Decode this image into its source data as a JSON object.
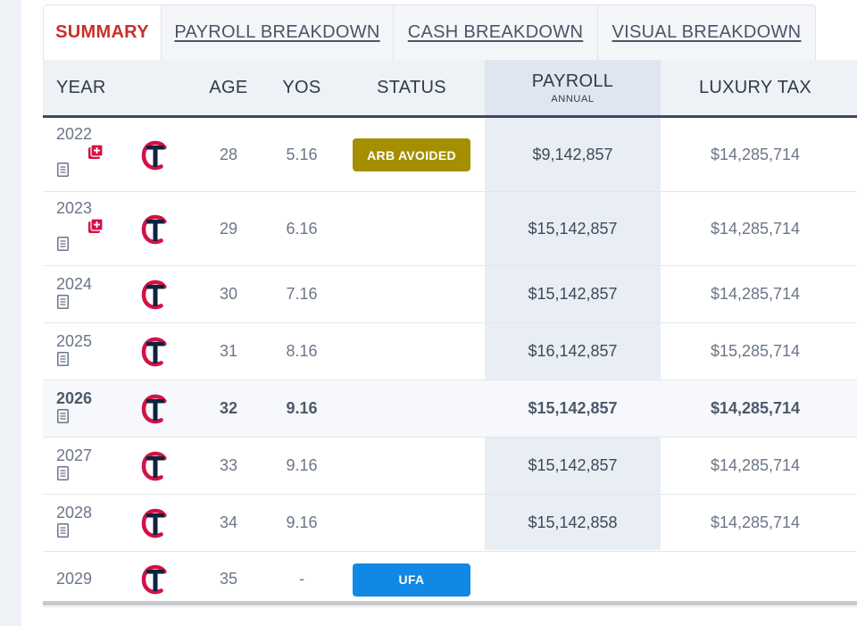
{
  "tabs": [
    {
      "label": "SUMMARY",
      "active": true
    },
    {
      "label": "PAYROLL BREAKDOWN",
      "active": false
    },
    {
      "label": "CASH BREAKDOWN",
      "active": false
    },
    {
      "label": "VISUAL BREAKDOWN",
      "active": false
    }
  ],
  "table": {
    "headers": {
      "year": "YEAR",
      "age": "AGE",
      "yos": "YOS",
      "status": "STATUS",
      "payroll": "PAYROLL",
      "payroll_sub": "ANNUAL",
      "luxury_tax": "LUXURY TAX"
    },
    "rows": [
      {
        "year": "2022",
        "age": "28",
        "yos": "5.16",
        "status": "ARB AVOIDED",
        "payroll": "$9,142,857",
        "luxury_tax": "$14,285,714"
      },
      {
        "year": "2023",
        "age": "29",
        "yos": "6.16",
        "status": "",
        "payroll": "$15,142,857",
        "luxury_tax": "$14,285,714"
      },
      {
        "year": "2024",
        "age": "30",
        "yos": "7.16",
        "status": "",
        "payroll": "$15,142,857",
        "luxury_tax": "$14,285,714"
      },
      {
        "year": "2025",
        "age": "31",
        "yos": "8.16",
        "status": "",
        "payroll": "$16,142,857",
        "luxury_tax": "$15,285,714"
      },
      {
        "year": "2026",
        "age": "32",
        "yos": "9.16",
        "status": "",
        "payroll": "$15,142,857",
        "luxury_tax": "$14,285,714"
      },
      {
        "year": "2027",
        "age": "33",
        "yos": "9.16",
        "status": "",
        "payroll": "$15,142,857",
        "luxury_tax": "$14,285,714"
      },
      {
        "year": "2028",
        "age": "34",
        "yos": "9.16",
        "status": "",
        "payroll": "$15,142,858",
        "luxury_tax": "$14,285,714"
      },
      {
        "year": "2029",
        "age": "35",
        "yos": "-",
        "status": "UFA",
        "payroll": "",
        "luxury_tax": ""
      }
    ]
  },
  "colors": {
    "accent_red": "#c9302c",
    "arb_badge": "#a58f00",
    "ufa_badge": "#1088e4",
    "team_navy": "#0c2340",
    "team_red": "#d31145"
  },
  "icons": {
    "team_logo": "twins-tc-logo-icon",
    "contract": "document-icon",
    "injury": "medical-cross-icon"
  }
}
